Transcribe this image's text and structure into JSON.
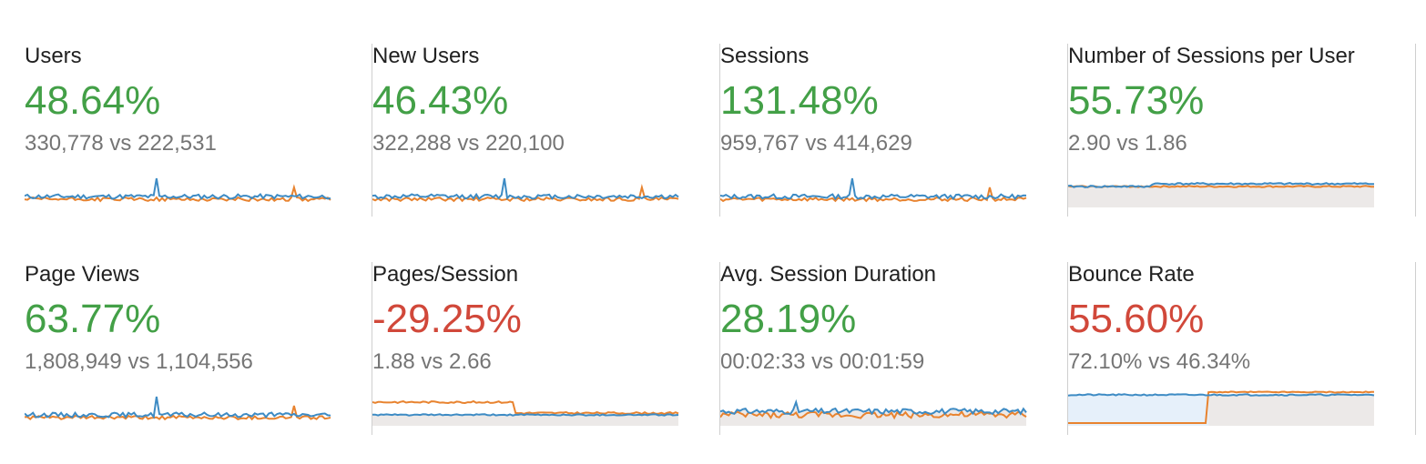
{
  "colors": {
    "positive": "#43a047",
    "negative": "#d1483a",
    "series_current": "#3d8bc4",
    "series_previous": "#e8832f",
    "fill_previous": "#ece9e8",
    "fill_current": "#e6f0fa"
  },
  "metrics": [
    {
      "title": "Users",
      "change": "48.64%",
      "sentiment": "positive",
      "comparison": "330,778 vs 222,531",
      "chart_type": "line"
    },
    {
      "title": "New Users",
      "change": "46.43%",
      "sentiment": "positive",
      "comparison": "322,288 vs 220,100",
      "chart_type": "line"
    },
    {
      "title": "Sessions",
      "change": "131.48%",
      "sentiment": "positive",
      "comparison": "959,767 vs 414,629",
      "chart_type": "line"
    },
    {
      "title": "Number of Sessions per User",
      "change": "55.73%",
      "sentiment": "positive",
      "comparison": "2.90 vs 1.86",
      "chart_type": "area"
    },
    {
      "title": "Page Views",
      "change": "63.77%",
      "sentiment": "positive",
      "comparison": "1,808,949 vs 1,104,556",
      "chart_type": "line"
    },
    {
      "title": "Pages/Session",
      "change": "-29.25%",
      "sentiment": "negative",
      "comparison": "1.88 vs 2.66",
      "chart_type": "area"
    },
    {
      "title": "Avg. Session Duration",
      "change": "28.19%",
      "sentiment": "positive",
      "comparison": "00:02:33 vs 00:01:59",
      "chart_type": "line"
    },
    {
      "title": "Bounce Rate",
      "change": "55.60%",
      "sentiment": "negative",
      "comparison": "72.10% vs 46.34%",
      "chart_type": "area"
    }
  ]
}
